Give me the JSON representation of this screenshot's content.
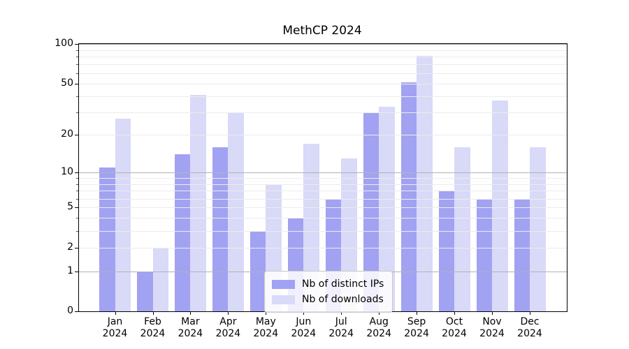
{
  "title": "MethCP 2024",
  "legend": {
    "items": [
      {
        "label": "Nb of distinct IPs",
        "color": "#a2a2f2"
      },
      {
        "label": "Nb of downloads",
        "color": "#d9d9f8"
      }
    ]
  },
  "axes": {
    "y_tick_labels": [
      "0",
      "1",
      "2",
      "5",
      "10",
      "20",
      "50",
      "100"
    ],
    "y_tick_values": [
      0,
      1,
      2,
      5,
      10,
      20,
      50,
      100
    ],
    "y_minor_values": [
      2,
      3,
      4,
      5,
      6,
      7,
      8,
      9,
      20,
      30,
      40,
      50,
      60,
      70,
      80,
      90
    ],
    "y_major_grid_values": [
      1,
      10,
      100
    ],
    "major_grid_color": "#b2b2b2",
    "minor_grid_color": "#ececec"
  },
  "chart_data": {
    "type": "bar",
    "title": "MethCP 2024",
    "categories": [
      "Jan 2024",
      "Feb 2024",
      "Mar 2024",
      "Apr 2024",
      "May 2024",
      "Jun 2024",
      "Jul 2024",
      "Aug 2024",
      "Sep 2024",
      "Oct 2024",
      "Nov 2024",
      "Dec 2024"
    ],
    "series": [
      {
        "name": "Nb of distinct IPs",
        "color": "#a2a2f2",
        "values": [
          11,
          1,
          14,
          16,
          3,
          4,
          6,
          30,
          51,
          7,
          6,
          6
        ]
      },
      {
        "name": "Nb of downloads",
        "color": "#d9d9f8",
        "values": [
          27,
          2,
          41,
          30,
          8,
          17,
          13,
          33,
          81,
          16,
          37,
          16
        ]
      }
    ],
    "yscale": "log1p",
    "ylim": [
      0,
      100
    ],
    "y_ticks": [
      0,
      1,
      2,
      5,
      10,
      20,
      50,
      100
    ],
    "xlabel": "",
    "ylabel": "",
    "grid": true,
    "grid_on_top": true,
    "legend_position": "lower center"
  }
}
